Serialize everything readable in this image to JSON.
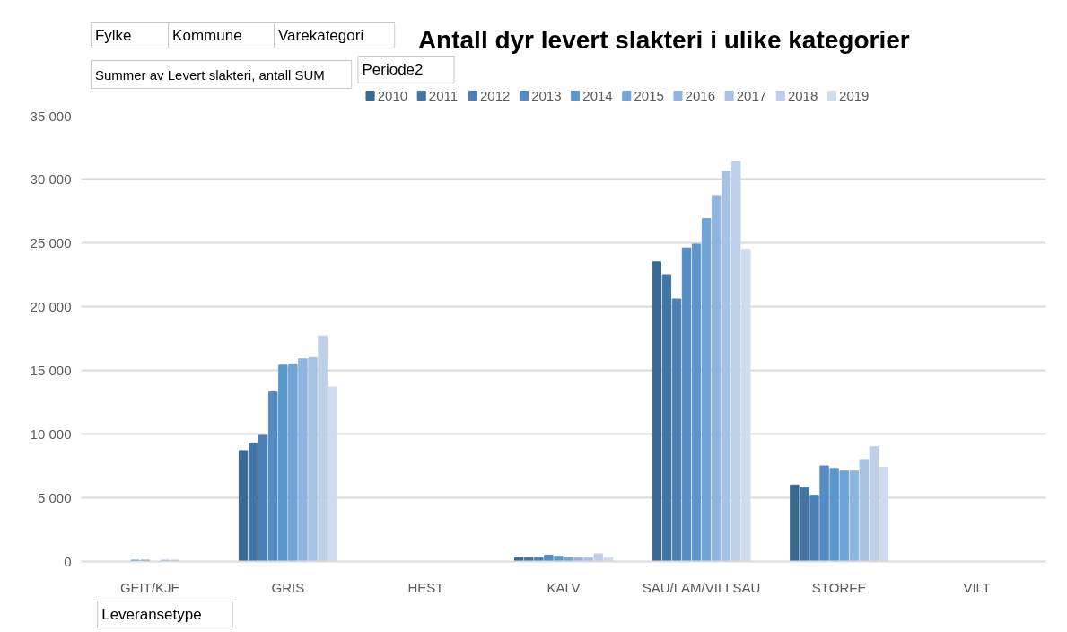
{
  "chart_data": {
    "type": "bar",
    "title": "Antall dyr levert slakteri  i ulike kategorier",
    "annotations": [
      "Fylke",
      "Kommune",
      "Varekategori",
      "Summer av Levert slakteri, antall SUM",
      "Periode2",
      "Leveransetype"
    ],
    "categories": [
      "GEIT/KJE",
      "GRIS",
      "HEST",
      "KALV",
      "SAU/LAM/VILLSAU",
      "STORFE",
      "VILT"
    ],
    "series": [
      {
        "name": "2010",
        "color": "#3a6891",
        "values": [
          null,
          8700,
          null,
          300,
          23500,
          6000,
          null
        ]
      },
      {
        "name": "2011",
        "color": "#4275a3",
        "values": [
          null,
          9300,
          null,
          300,
          22500,
          5800,
          null
        ]
      },
      {
        "name": "2012",
        "color": "#4a80b5",
        "values": [
          null,
          9900,
          null,
          300,
          20600,
          5200,
          null
        ]
      },
      {
        "name": "2013",
        "color": "#548cc3",
        "values": [
          100,
          13300,
          null,
          500,
          24600,
          7500,
          null
        ]
      },
      {
        "name": "2014",
        "color": "#5a98cc",
        "values": [
          100,
          15400,
          null,
          400,
          24900,
          7300,
          null
        ]
      },
      {
        "name": "2015",
        "color": "#70a3d6",
        "values": [
          null,
          15500,
          null,
          300,
          26900,
          7100,
          null
        ]
      },
      {
        "name": "2016",
        "color": "#8fb4de",
        "values": [
          100,
          15900,
          null,
          300,
          28700,
          7100,
          null
        ]
      },
      {
        "name": "2017",
        "color": "#a7c1e3",
        "values": [
          100,
          16000,
          null,
          300,
          30600,
          8000,
          null
        ]
      },
      {
        "name": "2018",
        "color": "#bdd0e8",
        "values": [
          null,
          17700,
          null,
          600,
          31400,
          9000,
          null
        ]
      },
      {
        "name": "2019",
        "color": "#cfdcee",
        "values": [
          null,
          13700,
          null,
          300,
          24500,
          7400,
          null
        ]
      }
    ],
    "ylim": [
      0,
      35000
    ],
    "yticks": [
      {
        "value": 0,
        "label": "0"
      },
      {
        "value": 5000,
        "label": "5 000"
      },
      {
        "value": 10000,
        "label": "10 000"
      },
      {
        "value": 15000,
        "label": "15 000"
      },
      {
        "value": 20000,
        "label": "20 000"
      },
      {
        "value": 25000,
        "label": "25 000"
      },
      {
        "value": 30000,
        "label": "30 000"
      },
      {
        "value": 35000,
        "label": "35 000"
      }
    ],
    "grid": "y",
    "legend": "top"
  }
}
